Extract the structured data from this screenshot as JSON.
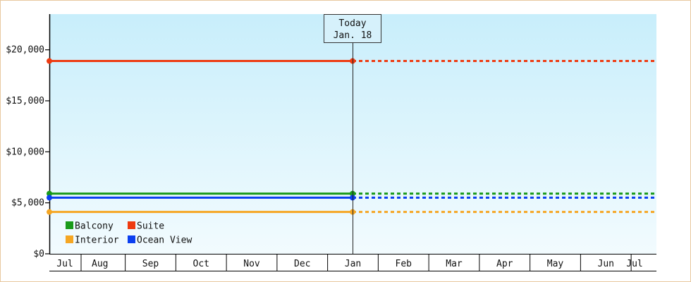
{
  "chart_data": {
    "type": "line",
    "y_ticks": [
      "$0",
      "$5,000",
      "$10,000",
      "$15,000",
      "$20,000"
    ],
    "y_tick_values": [
      0,
      5000,
      10000,
      15000,
      20000
    ],
    "ylim": [
      0,
      23500
    ],
    "x_ticks": [
      "Jul",
      "Aug",
      "Sep",
      "Oct",
      "Nov",
      "Dec",
      "Jan",
      "Feb",
      "Mar",
      "Apr",
      "May",
      "Jun",
      "Jul"
    ],
    "grid": false,
    "legend_position": "bottom-left",
    "marker": {
      "label": "Today",
      "date": "Jan. 18"
    },
    "series": [
      {
        "name": "Balcony",
        "color": "#1a9a1a",
        "value": 5900
      },
      {
        "name": "Suite",
        "color": "#ee3a10",
        "value": 18900
      },
      {
        "name": "Interior",
        "color": "#f5a623",
        "value": 4100
      },
      {
        "name": "Ocean View",
        "color": "#0b3ff0",
        "value": 5500
      }
    ],
    "colors": {
      "background_top": "#c8eefb",
      "background_bottom": "#f2fbfe",
      "frame_border": "#e8c9a0",
      "axis": "#000000"
    }
  }
}
